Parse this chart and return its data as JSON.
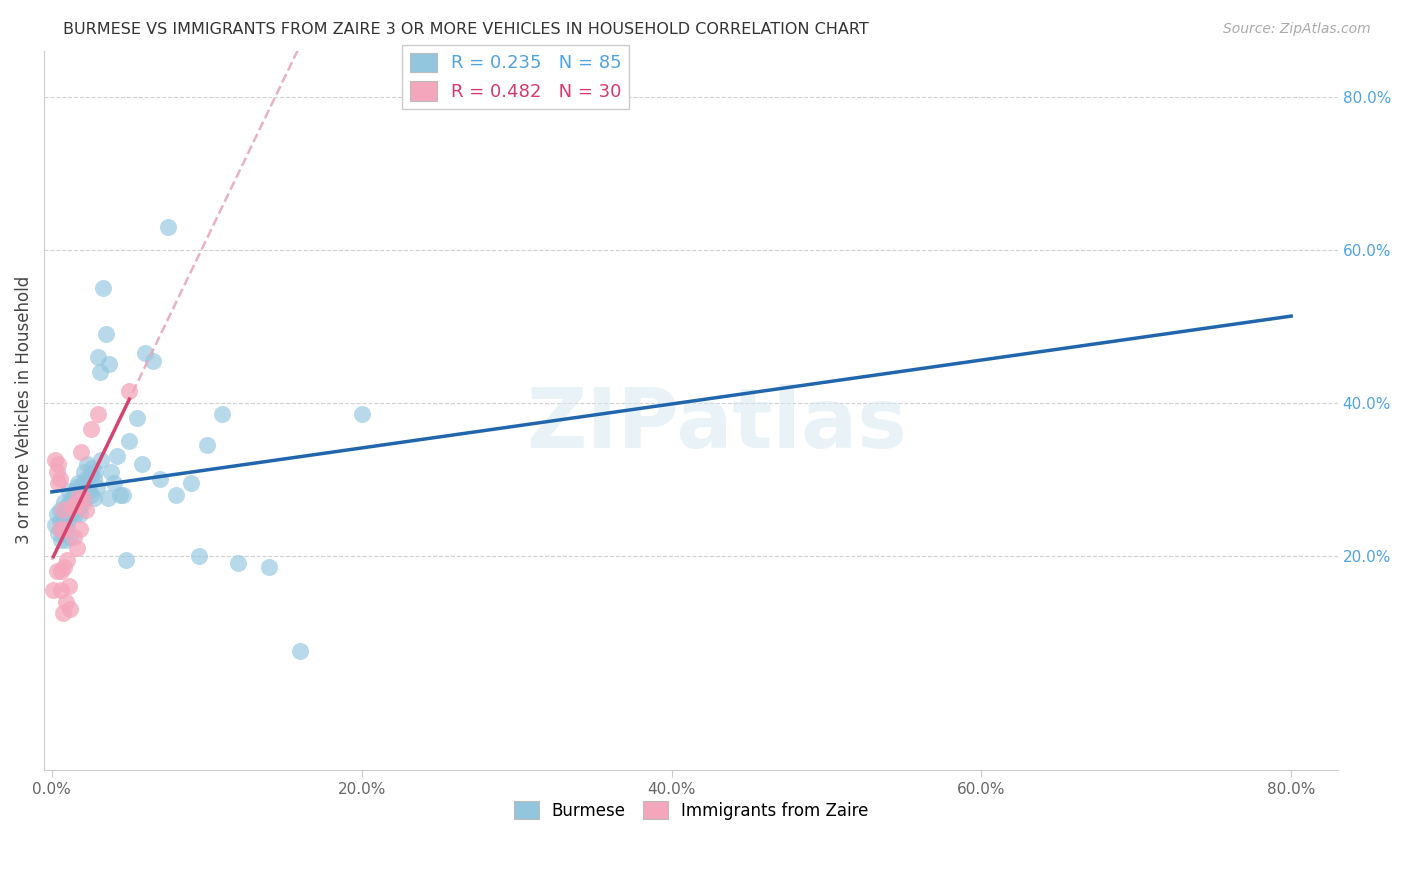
{
  "title": "BURMESE VS IMMIGRANTS FROM ZAIRE 3 OR MORE VEHICLES IN HOUSEHOLD CORRELATION CHART",
  "source": "Source: ZipAtlas.com",
  "ylabel": "3 or more Vehicles in Household",
  "xlim": [
    -0.005,
    0.83
  ],
  "ylim": [
    -0.08,
    0.86
  ],
  "xticks": [
    0.0,
    0.2,
    0.4,
    0.6,
    0.8
  ],
  "xticklabels": [
    "0.0%",
    "20.0%",
    "40.0%",
    "60.0%",
    "80.0%"
  ],
  "ytick_vals": [
    0.2,
    0.4,
    0.6,
    0.8
  ],
  "ytick_labels": [
    "20.0%",
    "40.0%",
    "60.0%",
    "80.0%"
  ],
  "R_burmese": 0.235,
  "N_burmese": 85,
  "R_zaire": 0.482,
  "N_zaire": 30,
  "burmese_color": "#92c5de",
  "zaire_color": "#f4a6bc",
  "burmese_line_color": "#2166ac",
  "zaire_line_color": "#d6436e",
  "zaire_dash_color": "#e8a8be",
  "background_color": "#ffffff",
  "grid_color": "#cccccc",
  "burmese_x": [
    0.002,
    0.003,
    0.004,
    0.005,
    0.005,
    0.006,
    0.006,
    0.007,
    0.007,
    0.007,
    0.008,
    0.008,
    0.008,
    0.009,
    0.009,
    0.009,
    0.01,
    0.01,
    0.01,
    0.01,
    0.011,
    0.011,
    0.012,
    0.012,
    0.012,
    0.013,
    0.013,
    0.014,
    0.014,
    0.015,
    0.015,
    0.015,
    0.016,
    0.016,
    0.017,
    0.017,
    0.017,
    0.018,
    0.018,
    0.019,
    0.019,
    0.02,
    0.02,
    0.021,
    0.021,
    0.022,
    0.023,
    0.023,
    0.024,
    0.025,
    0.025,
    0.026,
    0.027,
    0.027,
    0.028,
    0.029,
    0.03,
    0.031,
    0.032,
    0.033,
    0.035,
    0.036,
    0.037,
    0.038,
    0.04,
    0.042,
    0.044,
    0.046,
    0.048,
    0.05,
    0.055,
    0.058,
    0.06,
    0.065,
    0.07,
    0.075,
    0.08,
    0.09,
    0.095,
    0.1,
    0.11,
    0.12,
    0.14,
    0.16,
    0.2
  ],
  "burmese_y": [
    0.24,
    0.255,
    0.23,
    0.245,
    0.26,
    0.235,
    0.22,
    0.25,
    0.245,
    0.23,
    0.255,
    0.24,
    0.27,
    0.26,
    0.22,
    0.235,
    0.255,
    0.24,
    0.265,
    0.245,
    0.26,
    0.285,
    0.27,
    0.255,
    0.225,
    0.275,
    0.255,
    0.28,
    0.265,
    0.27,
    0.285,
    0.255,
    0.29,
    0.27,
    0.28,
    0.295,
    0.265,
    0.275,
    0.255,
    0.29,
    0.265,
    0.295,
    0.27,
    0.31,
    0.28,
    0.3,
    0.32,
    0.29,
    0.285,
    0.305,
    0.28,
    0.315,
    0.3,
    0.275,
    0.31,
    0.29,
    0.46,
    0.44,
    0.325,
    0.55,
    0.49,
    0.275,
    0.45,
    0.31,
    0.295,
    0.33,
    0.28,
    0.28,
    0.195,
    0.35,
    0.38,
    0.32,
    0.465,
    0.455,
    0.3,
    0.63,
    0.28,
    0.295,
    0.2,
    0.345,
    0.385,
    0.19,
    0.185,
    0.075,
    0.385
  ],
  "zaire_x": [
    0.001,
    0.002,
    0.003,
    0.003,
    0.004,
    0.004,
    0.005,
    0.005,
    0.006,
    0.006,
    0.007,
    0.007,
    0.008,
    0.008,
    0.009,
    0.01,
    0.011,
    0.012,
    0.013,
    0.014,
    0.015,
    0.016,
    0.017,
    0.018,
    0.019,
    0.02,
    0.022,
    0.025,
    0.03,
    0.05
  ],
  "zaire_y": [
    0.155,
    0.325,
    0.31,
    0.18,
    0.32,
    0.295,
    0.3,
    0.235,
    0.18,
    0.155,
    0.125,
    0.26,
    0.235,
    0.185,
    0.14,
    0.195,
    0.16,
    0.13,
    0.265,
    0.225,
    0.265,
    0.21,
    0.275,
    0.235,
    0.335,
    0.275,
    0.26,
    0.365,
    0.385,
    0.415
  ]
}
